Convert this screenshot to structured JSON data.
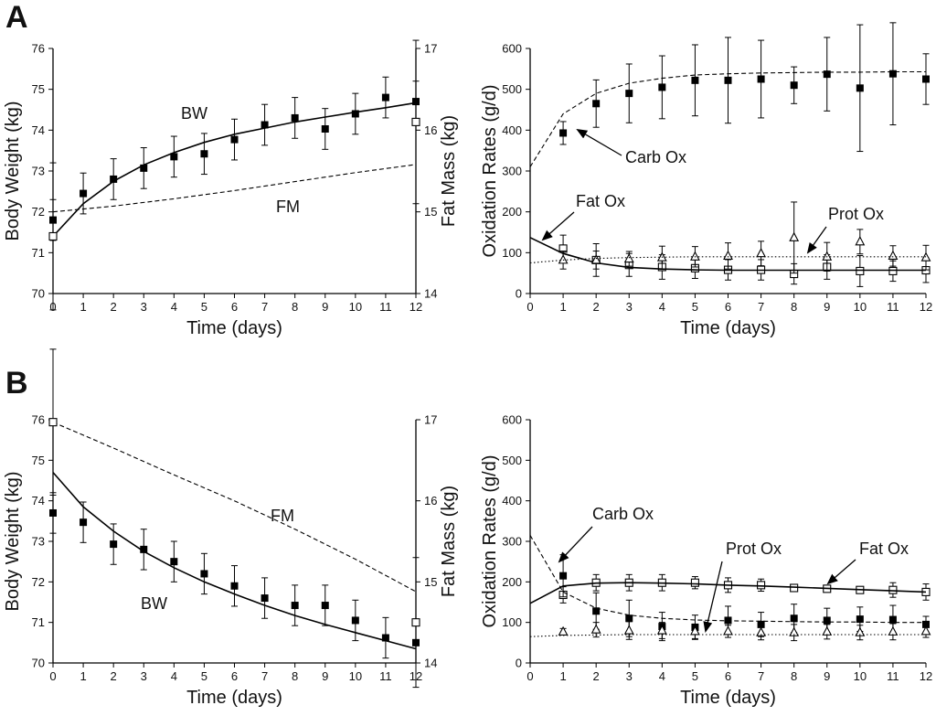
{
  "panel_labels": [
    "A",
    "B"
  ],
  "chart_data": [
    {
      "id": "A-left",
      "type": "line",
      "title": "",
      "xlabel": "Time (days)",
      "ylabel": "Body Weight (kg)",
      "y2label": "Fat Mass (kg)",
      "xlim": [
        0,
        12
      ],
      "ylim": [
        70,
        76
      ],
      "y2lim": [
        14,
        17
      ],
      "xticks": [
        0,
        1,
        2,
        3,
        4,
        5,
        6,
        7,
        8,
        9,
        10,
        11,
        12
      ],
      "yticks": [
        70,
        71,
        72,
        73,
        74,
        75,
        76
      ],
      "y2ticks": [
        14,
        15,
        16,
        17
      ],
      "series": [
        {
          "name": "BW measured",
          "axis": "left",
          "marker": "filled-square",
          "x": [
            0,
            1,
            2,
            3,
            4,
            5,
            6,
            7,
            8,
            9,
            10,
            11,
            12
          ],
          "values": [
            71.8,
            72.45,
            72.8,
            73.07,
            73.35,
            73.42,
            73.77,
            74.13,
            74.3,
            74.03,
            74.4,
            74.8,
            74.7
          ],
          "err": [
            0.5,
            0.5,
            0.5,
            0.5,
            0.5,
            0.5,
            0.5,
            0.5,
            0.5,
            0.5,
            0.5,
            0.5,
            0.5
          ]
        },
        {
          "name": "BW model",
          "axis": "left",
          "line": "solid",
          "x": [
            0,
            1,
            2,
            3,
            4,
            5,
            6,
            7,
            8,
            9,
            10,
            11,
            12
          ],
          "values": [
            71.4,
            72.2,
            72.75,
            73.15,
            73.45,
            73.7,
            73.9,
            74.05,
            74.2,
            74.32,
            74.44,
            74.55,
            74.67
          ]
        },
        {
          "name": "FM model",
          "axis": "right",
          "line": "dashed",
          "x": [
            0,
            2,
            4,
            6,
            8,
            10,
            12
          ],
          "values": [
            15.0,
            15.07,
            15.16,
            15.26,
            15.37,
            15.48,
            15.58
          ]
        },
        {
          "name": "FM measured",
          "axis": "right",
          "marker": "open-square",
          "x": [
            0,
            12
          ],
          "values": [
            14.7,
            16.1
          ],
          "err": [
            0.9,
            1.0
          ]
        }
      ],
      "annotations": [
        "BW",
        "FM"
      ]
    },
    {
      "id": "A-right",
      "type": "line",
      "title": "",
      "xlabel": "Time (days)",
      "ylabel": "Oxidation Rates (g/d)",
      "xlim": [
        0,
        12
      ],
      "ylim": [
        0,
        600
      ],
      "xticks": [
        0,
        1,
        2,
        3,
        4,
        5,
        6,
        7,
        8,
        9,
        10,
        11,
        12
      ],
      "yticks": [
        0,
        100,
        200,
        300,
        400,
        500,
        600
      ],
      "series": [
        {
          "name": "Carb Ox measured",
          "marker": "filled-square",
          "x": [
            1,
            2,
            3,
            4,
            5,
            6,
            7,
            8,
            9,
            10,
            11,
            12
          ],
          "values": [
            393,
            465,
            490,
            505,
            522,
            522,
            525,
            510,
            537,
            503,
            538,
            525
          ],
          "err": [
            28,
            58,
            72,
            77,
            87,
            105,
            95,
            45,
            90,
            155,
            125,
            62
          ]
        },
        {
          "name": "Carb Ox model",
          "line": "dashed",
          "x": [
            0,
            1,
            2,
            3,
            4,
            5,
            6,
            7,
            8,
            9,
            10,
            11,
            12
          ],
          "values": [
            310,
            440,
            490,
            515,
            527,
            535,
            538,
            540,
            541,
            542,
            542,
            543,
            543
          ]
        },
        {
          "name": "Fat Ox measured",
          "marker": "open-square",
          "x": [
            1,
            2,
            3,
            4,
            5,
            6,
            7,
            8,
            9,
            10,
            11,
            12
          ],
          "values": [
            110,
            82,
            70,
            65,
            62,
            58,
            58,
            48,
            65,
            55,
            55,
            57
          ],
          "err": [
            33,
            40,
            28,
            30,
            25,
            25,
            25,
            25,
            30,
            38,
            25,
            30
          ]
        },
        {
          "name": "Fat Ox model",
          "line": "solid",
          "x": [
            0,
            1,
            2,
            3,
            4,
            5,
            6,
            7,
            8,
            9,
            10,
            11,
            12
          ],
          "values": [
            137,
            98,
            75,
            64,
            60,
            58,
            57,
            57,
            57,
            57,
            57,
            57,
            57
          ]
        },
        {
          "name": "Prot Ox measured",
          "marker": "open-triangle",
          "x": [
            1,
            2,
            3,
            4,
            5,
            6,
            7,
            8,
            9,
            10,
            11,
            12
          ],
          "values": [
            82,
            82,
            85,
            88,
            90,
            92,
            98,
            137,
            90,
            127,
            92,
            88
          ],
          "err": [
            22,
            22,
            18,
            28,
            25,
            32,
            30,
            87,
            35,
            30,
            25,
            30
          ]
        },
        {
          "name": "Prot Ox model",
          "line": "dotted",
          "x": [
            0,
            1,
            2,
            3,
            4,
            5,
            6,
            7,
            8,
            9,
            10,
            11,
            12
          ],
          "values": [
            75,
            82,
            86,
            88,
            89,
            90,
            90,
            90,
            90,
            90,
            90,
            90,
            90
          ]
        }
      ],
      "annotations": [
        "Carb Ox",
        "Fat Ox",
        "Prot Ox"
      ]
    },
    {
      "id": "B-left",
      "type": "line",
      "title": "",
      "xlabel": "Time (days)",
      "ylabel": "Body Weight (kg)",
      "y2label": "Fat Mass (kg)",
      "xlim": [
        0,
        12
      ],
      "ylim": [
        70,
        76
      ],
      "y2lim": [
        14,
        17
      ],
      "xticks": [
        0,
        1,
        2,
        3,
        4,
        5,
        6,
        7,
        8,
        9,
        10,
        11,
        12
      ],
      "yticks": [
        70,
        71,
        72,
        73,
        74,
        75,
        76
      ],
      "y2ticks": [
        14,
        15,
        16,
        17
      ],
      "series": [
        {
          "name": "BW measured",
          "axis": "left",
          "marker": "filled-square",
          "x": [
            0,
            1,
            2,
            3,
            4,
            5,
            6,
            7,
            8,
            9,
            10,
            11,
            12
          ],
          "values": [
            73.7,
            73.47,
            72.93,
            72.8,
            72.5,
            72.2,
            71.9,
            71.6,
            71.42,
            71.42,
            71.05,
            70.62,
            70.5
          ],
          "err": [
            0.5,
            0.5,
            0.5,
            0.5,
            0.5,
            0.5,
            0.5,
            0.5,
            0.5,
            0.5,
            0.5,
            0.5,
            0.5
          ]
        },
        {
          "name": "BW model",
          "axis": "left",
          "line": "solid",
          "x": [
            0,
            1,
            2,
            3,
            4,
            5,
            6,
            7,
            8,
            9,
            10,
            11,
            12
          ],
          "values": [
            74.7,
            73.85,
            73.25,
            72.75,
            72.35,
            72.0,
            71.7,
            71.42,
            71.17,
            70.95,
            70.75,
            70.55,
            70.35
          ]
        },
        {
          "name": "FM model",
          "axis": "right",
          "line": "dashed",
          "x": [
            0,
            2,
            4,
            6,
            8,
            10,
            12
          ],
          "values": [
            16.97,
            16.65,
            16.32,
            16.0,
            15.65,
            15.28,
            14.88
          ]
        },
        {
          "name": "FM measured",
          "axis": "right",
          "marker": "open-square",
          "x": [
            0,
            12
          ],
          "values": [
            16.97,
            14.5
          ],
          "err": [
            0.9,
            0.8
          ]
        }
      ],
      "annotations": [
        "FM",
        "BW"
      ]
    },
    {
      "id": "B-right",
      "type": "line",
      "title": "",
      "xlabel": "Time (days)",
      "ylabel": "Oxidation Rates (g/d)",
      "xlim": [
        0,
        12
      ],
      "ylim": [
        0,
        600
      ],
      "xticks": [
        0,
        1,
        2,
        3,
        4,
        5,
        6,
        7,
        8,
        9,
        10,
        11,
        12
      ],
      "yticks": [
        0,
        100,
        200,
        300,
        400,
        500,
        600
      ],
      "series": [
        {
          "name": "Fat Ox measured",
          "marker": "open-square",
          "x": [
            1,
            2,
            3,
            4,
            5,
            6,
            7,
            8,
            9,
            10,
            11,
            12
          ],
          "values": [
            168,
            198,
            198,
            198,
            198,
            192,
            192,
            185,
            183,
            180,
            180,
            175
          ],
          "err": [
            20,
            20,
            20,
            20,
            15,
            18,
            15,
            8,
            8,
            8,
            18,
            20
          ]
        },
        {
          "name": "Fat Ox model",
          "line": "solid",
          "x": [
            0,
            1,
            2,
            3,
            4,
            5,
            6,
            7,
            8,
            9,
            10,
            11,
            12
          ],
          "values": [
            147,
            190,
            197,
            198,
            197,
            195,
            192,
            190,
            187,
            184,
            181,
            178,
            175
          ]
        },
        {
          "name": "Carb Ox measured",
          "marker": "filled-square",
          "x": [
            1,
            2,
            3,
            4,
            5,
            6,
            7,
            8,
            9,
            10,
            11,
            12
          ],
          "values": [
            215,
            128,
            110,
            90,
            88,
            105,
            95,
            110,
            105,
            108,
            107,
            95
          ],
          "err": [
            52,
            45,
            45,
            35,
            30,
            35,
            30,
            35,
            30,
            30,
            35,
            20
          ]
        },
        {
          "name": "Carb Ox model",
          "line": "dashed",
          "x": [
            0,
            1,
            2,
            3,
            4,
            5,
            6,
            7,
            8,
            9,
            10,
            11,
            12
          ],
          "values": [
            315,
            175,
            135,
            118,
            110,
            106,
            104,
            103,
            102,
            101,
            101,
            100,
            100
          ]
        },
        {
          "name": "Prot Ox measured",
          "marker": "open-triangle",
          "x": [
            1,
            2,
            3,
            4,
            5,
            6,
            7,
            8,
            9,
            10,
            11,
            12
          ],
          "values": [
            77,
            82,
            80,
            80,
            78,
            78,
            75,
            75,
            77,
            75,
            77,
            78
          ],
          "err": [
            8,
            18,
            22,
            20,
            18,
            15,
            18,
            20,
            18,
            18,
            20,
            15
          ]
        },
        {
          "name": "Prot Ox model",
          "line": "dotted",
          "x": [
            0,
            1,
            2,
            3,
            4,
            5,
            6,
            7,
            8,
            9,
            10,
            11,
            12
          ],
          "values": [
            65,
            68,
            69,
            70,
            70,
            70,
            70,
            70,
            70,
            70,
            70,
            70,
            70
          ]
        }
      ],
      "annotations": [
        "Carb Ox",
        "Prot Ox",
        "Fat Ox"
      ]
    }
  ]
}
